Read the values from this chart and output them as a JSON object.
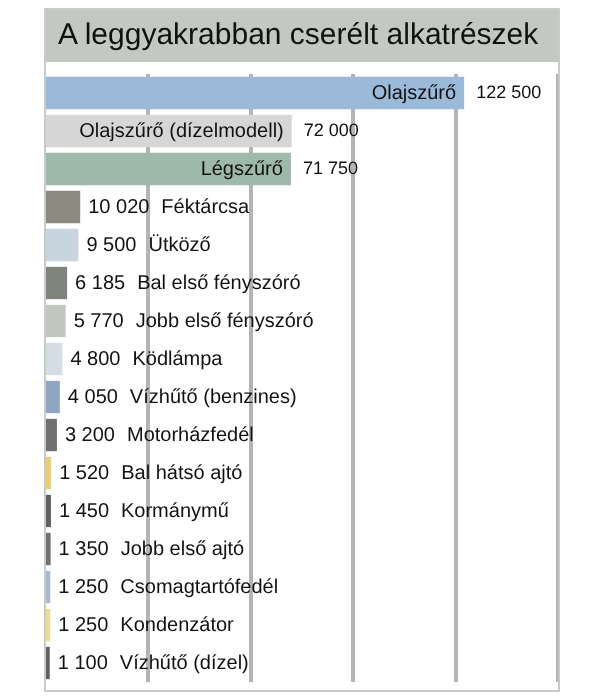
{
  "chart_data": {
    "type": "bar",
    "orientation": "horizontal",
    "title": "A leggyakrabban cserélt alkatrészek",
    "categories": [
      "Olajszűrő",
      "Olajszűrő (dízelmodell)",
      "Légszűrő",
      "Féktárcsa",
      "Ütköző",
      "Bal első fényszóró",
      "Jobb első fényszóró",
      "Ködlámpa",
      "Vízhűtő (benzines)",
      "Motorházfedél",
      "Bal hátsó ajtó",
      "Kormánymű",
      "Jobb első ajtó",
      "Csomagtartófedél",
      "Kondenzátor",
      "Vízhűtő (dízel)"
    ],
    "values": [
      122500,
      72000,
      71750,
      10020,
      9500,
      6185,
      5770,
      4800,
      4050,
      3200,
      1520,
      1450,
      1350,
      1250,
      1250,
      1100
    ],
    "value_labels": [
      "122 500",
      "72 000",
      "71 750",
      "10 020",
      "9 500",
      "6 185",
      "5 770",
      "4 800",
      "4 050",
      "3 200",
      "1 520",
      "1 450",
      "1 350",
      "1 250",
      "1 250",
      "1 100"
    ],
    "colors": [
      "#9bb9d9",
      "#d6d6d6",
      "#9fb9a9",
      "#8a8a80",
      "#c8d4de",
      "#7e847c",
      "#c2c8c0",
      "#d4dde6",
      "#8fa5c0",
      "#6f6f6f",
      "#e8d070",
      "#606060",
      "#707070",
      "#a8b8d0",
      "#eedd90",
      "#606060"
    ],
    "xlim": [
      0,
      150000
    ],
    "xticks": [
      {
        "value": 30000,
        "label": null
      },
      {
        "value": 60000,
        "label": null
      },
      {
        "value": 90000,
        "label": null
      },
      {
        "value": 120000,
        "label": null
      },
      {
        "value": 150000,
        "label": null
      }
    ],
    "grid": "x",
    "tick_labels": false,
    "legend": false
  }
}
